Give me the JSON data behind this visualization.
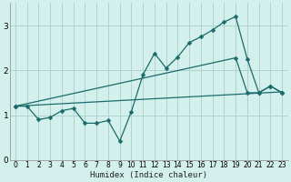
{
  "xlabel": "Humidex (Indice chaleur)",
  "background_color": "#d4f0ec",
  "grid_color": "#aed4ce",
  "line_color": "#1a6b6b",
  "xlim": [
    -0.5,
    23.5
  ],
  "ylim": [
    0,
    3.5
  ],
  "yticks": [
    0,
    1,
    2,
    3
  ],
  "xticks": [
    0,
    1,
    2,
    3,
    4,
    5,
    6,
    7,
    8,
    9,
    10,
    11,
    12,
    13,
    14,
    15,
    16,
    17,
    18,
    19,
    20,
    21,
    22,
    23
  ],
  "series": [
    {
      "x": [
        0,
        1,
        2,
        3,
        4,
        5,
        6,
        7,
        8,
        9,
        10,
        11,
        12,
        13,
        14,
        15,
        16,
        17,
        18,
        19,
        20,
        21,
        22,
        23
      ],
      "y": [
        1.2,
        1.2,
        0.9,
        0.95,
        1.1,
        1.15,
        0.82,
        0.82,
        0.88,
        0.42,
        1.08,
        1.9,
        2.38,
        2.05,
        2.3,
        2.62,
        2.75,
        2.9,
        3.08,
        3.2,
        2.25,
        1.5,
        1.65,
        1.5
      ],
      "marker": true
    },
    {
      "x": [
        0,
        19,
        20,
        21,
        22,
        23
      ],
      "y": [
        1.2,
        2.28,
        1.5,
        1.5,
        1.65,
        1.5
      ],
      "marker": true
    },
    {
      "x": [
        0,
        23
      ],
      "y": [
        1.2,
        1.52
      ],
      "marker": false
    }
  ]
}
